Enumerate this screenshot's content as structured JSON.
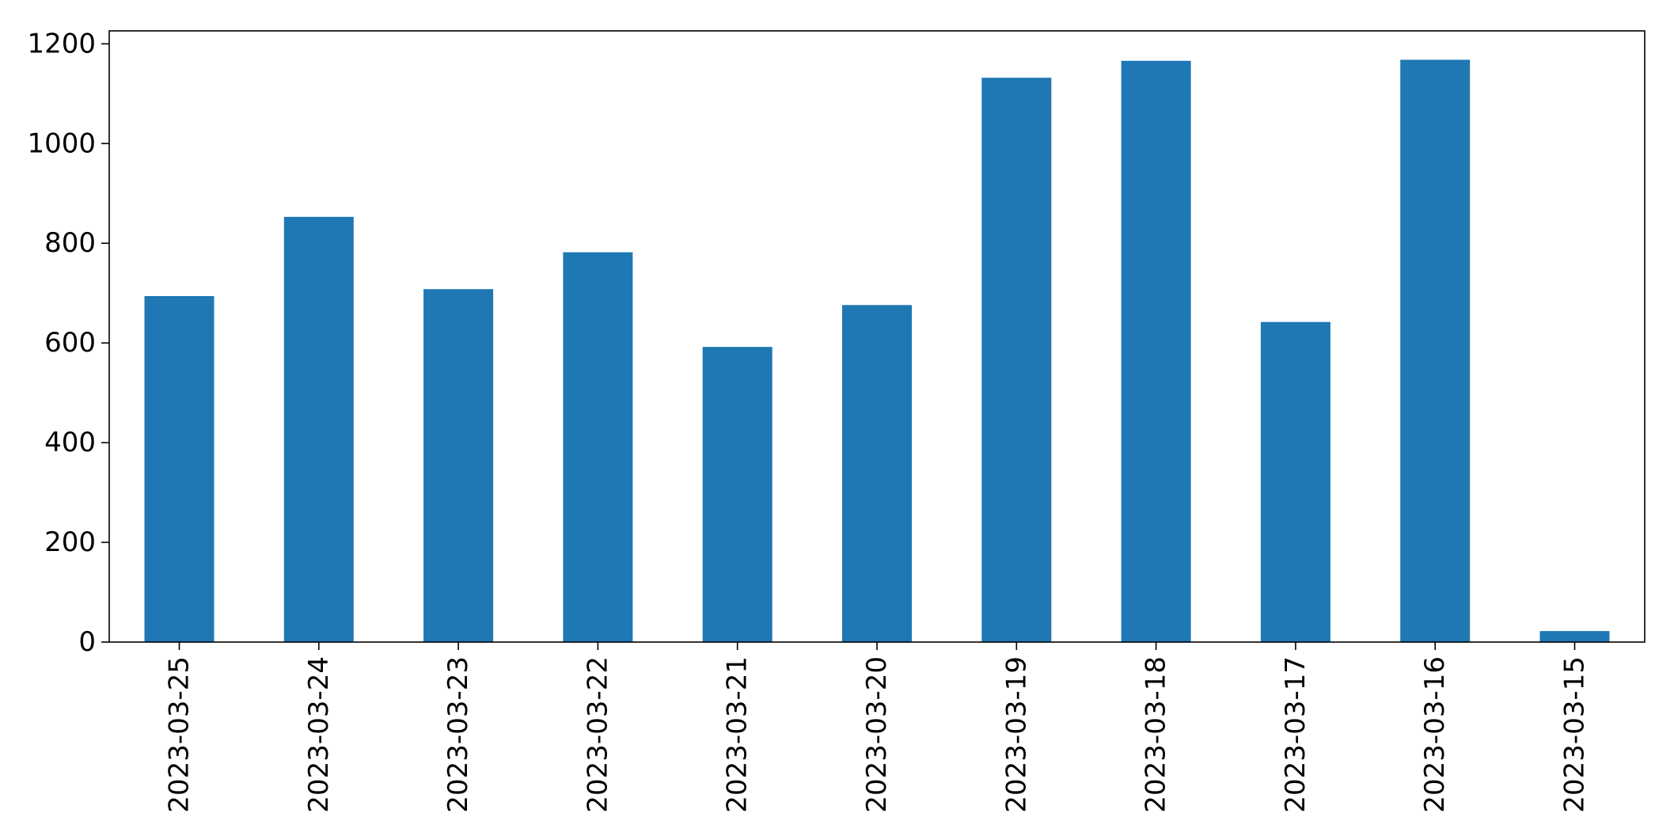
{
  "chart_data": {
    "type": "bar",
    "categories": [
      "2023-03-25",
      "2023-03-24",
      "2023-03-23",
      "2023-03-22",
      "2023-03-21",
      "2023-03-20",
      "2023-03-19",
      "2023-03-18",
      "2023-03-17",
      "2023-03-16",
      "2023-03-15"
    ],
    "values": [
      694,
      853,
      708,
      782,
      592,
      676,
      1132,
      1166,
      642,
      1168,
      22
    ],
    "title": "",
    "xlabel": "",
    "ylabel": "",
    "ylim": [
      0,
      1226
    ],
    "yticks": [
      0,
      200,
      400,
      600,
      800,
      1000,
      1200
    ],
    "ytick_labels": [
      "0",
      "200",
      "400",
      "600",
      "800",
      "1000",
      "1200"
    ],
    "grid": false,
    "legend": "none",
    "bar_color": "#1f77b4"
  }
}
